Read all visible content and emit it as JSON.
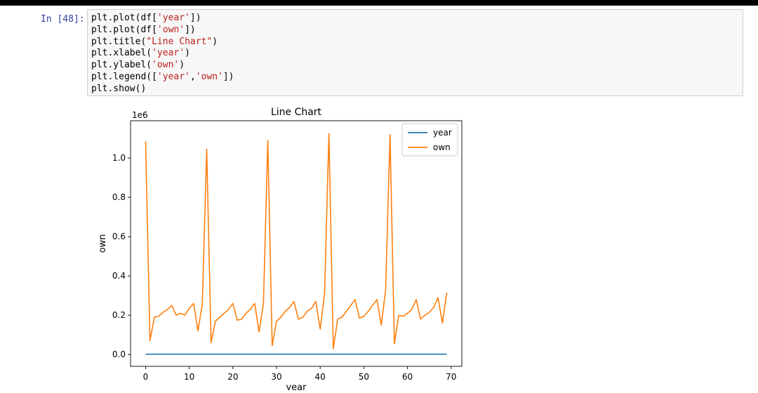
{
  "notebook": {
    "prompt": "In [48]:",
    "code_lines": [
      [
        {
          "t": "plt.plot(df["
        },
        {
          "t": "'year'",
          "s": true
        },
        {
          "t": "])"
        }
      ],
      [
        {
          "t": "plt.plot(df["
        },
        {
          "t": "'own'",
          "s": true
        },
        {
          "t": "])"
        }
      ],
      [
        {
          "t": "plt.title("
        },
        {
          "t": "\"Line Chart\"",
          "s": true
        },
        {
          "t": ")"
        }
      ],
      [
        {
          "t": "plt.xlabel("
        },
        {
          "t": "'year'",
          "s": true
        },
        {
          "t": ")"
        }
      ],
      [
        {
          "t": "plt.ylabel("
        },
        {
          "t": "'own'",
          "s": true
        },
        {
          "t": ")"
        }
      ],
      [
        {
          "t": "plt.legend(["
        },
        {
          "t": "'year'",
          "s": true
        },
        {
          "t": ","
        },
        {
          "t": "'own'",
          "s": true
        },
        {
          "t": "])"
        }
      ],
      [
        {
          "t": "plt.show()"
        }
      ]
    ]
  },
  "chart_data": {
    "type": "line",
    "title": "Line Chart",
    "xlabel": "year",
    "ylabel": "own",
    "y_offset_label": "1e6",
    "xlim": [
      -3.45,
      72.45
    ],
    "ylim": [
      -0.06,
      1.19
    ],
    "xticks": [
      0,
      10,
      20,
      30,
      40,
      50,
      60,
      70
    ],
    "xtick_labels": [
      "0",
      "10",
      "20",
      "30",
      "40",
      "50",
      "60",
      "70"
    ],
    "yticks": [
      0.0,
      0.2,
      0.4,
      0.6,
      0.8,
      1.0
    ],
    "ytick_labels": [
      "0.0",
      "0.2",
      "0.4",
      "0.6",
      "0.8",
      "1.0"
    ],
    "legend_position": "top-right",
    "x": [
      0,
      1,
      2,
      3,
      4,
      5,
      6,
      7,
      8,
      9,
      10,
      11,
      12,
      13,
      14,
      15,
      16,
      17,
      18,
      19,
      20,
      21,
      22,
      23,
      24,
      25,
      26,
      27,
      28,
      29,
      30,
      31,
      32,
      33,
      34,
      35,
      36,
      37,
      38,
      39,
      40,
      41,
      42,
      43,
      44,
      45,
      46,
      47,
      48,
      49,
      50,
      51,
      52,
      53,
      54,
      55,
      56,
      57,
      58,
      59,
      60,
      61,
      62,
      63,
      64,
      65,
      66,
      67,
      68,
      69
    ],
    "series": [
      {
        "name": "year",
        "color": "#1f77b4",
        "values": [
          0.002,
          0.002,
          0.002,
          0.002,
          0.002,
          0.002,
          0.002,
          0.002,
          0.002,
          0.002,
          0.002,
          0.002,
          0.002,
          0.002,
          0.002,
          0.002,
          0.002,
          0.002,
          0.002,
          0.002,
          0.002,
          0.002,
          0.002,
          0.002,
          0.002,
          0.002,
          0.002,
          0.002,
          0.002,
          0.002,
          0.002,
          0.002,
          0.002,
          0.002,
          0.002,
          0.002,
          0.002,
          0.002,
          0.002,
          0.002,
          0.002,
          0.002,
          0.002,
          0.002,
          0.002,
          0.002,
          0.002,
          0.002,
          0.002,
          0.002,
          0.002,
          0.002,
          0.002,
          0.002,
          0.002,
          0.002,
          0.002,
          0.002,
          0.002,
          0.002,
          0.002,
          0.002,
          0.002,
          0.002,
          0.002,
          0.002,
          0.002,
          0.002,
          0.002,
          0.002
        ]
      },
      {
        "name": "own",
        "color": "#ff7f0e",
        "values": [
          1.085,
          0.07,
          0.19,
          0.195,
          0.215,
          0.23,
          0.25,
          0.2,
          0.21,
          0.2,
          0.235,
          0.26,
          0.12,
          0.26,
          1.045,
          0.06,
          0.17,
          0.19,
          0.21,
          0.23,
          0.26,
          0.175,
          0.18,
          0.21,
          0.23,
          0.26,
          0.115,
          0.26,
          1.09,
          0.045,
          0.17,
          0.19,
          0.22,
          0.24,
          0.27,
          0.18,
          0.19,
          0.22,
          0.235,
          0.27,
          0.13,
          0.31,
          1.125,
          0.03,
          0.18,
          0.19,
          0.22,
          0.25,
          0.28,
          0.185,
          0.195,
          0.22,
          0.25,
          0.28,
          0.15,
          0.33,
          1.12,
          0.055,
          0.2,
          0.195,
          0.21,
          0.23,
          0.28,
          0.18,
          0.2,
          0.215,
          0.24,
          0.29,
          0.16,
          0.315
        ]
      }
    ]
  }
}
